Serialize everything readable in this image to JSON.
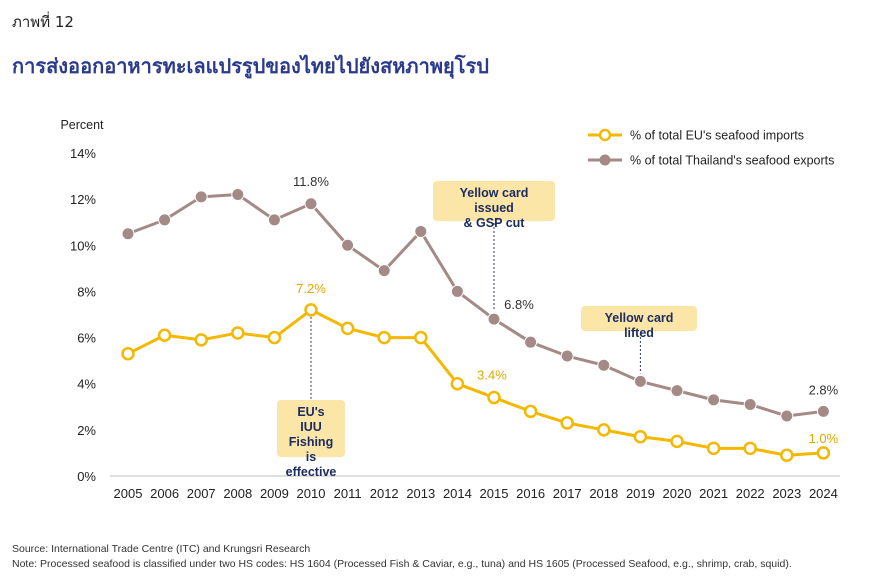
{
  "figure_label": "ภาพที่ 12",
  "title": "การส่งออกอาหารทะเลแปรรูปของไทยไปยังสหภาพยุโรป",
  "source": "Source: International Trade Centre (ITC) and Krungsri Research",
  "note": "Note: Processed seafood is classified under two HS codes: HS 1604 (Processed Fish & Caviar, e.g., tuna) and HS 1605 (Processed Seafood, e.g., shrimp, crab, squid).",
  "chart_data": {
    "type": "line",
    "ylabel": "Percent",
    "ylim": [
      0,
      14
    ],
    "yticks": [
      0,
      2,
      4,
      6,
      8,
      10,
      12,
      14
    ],
    "ytick_suffix": "%",
    "grid": false,
    "legend_position": "top-right",
    "categories": [
      "2005",
      "2006",
      "2007",
      "2008",
      "2009",
      "2010",
      "2011",
      "2012",
      "2013",
      "2014",
      "2015",
      "2016",
      "2017",
      "2018",
      "2019",
      "2020",
      "2021",
      "2022",
      "2023",
      "2024"
    ],
    "series": [
      {
        "name": "% of total EU's seafood imports",
        "color": "#f5b800",
        "values": [
          5.3,
          6.1,
          5.9,
          6.2,
          6.0,
          7.2,
          6.4,
          6.0,
          6.0,
          4.0,
          3.4,
          2.8,
          2.3,
          2.0,
          1.7,
          1.5,
          1.2,
          1.2,
          0.9,
          1.0
        ],
        "point_labels": [
          {
            "index": 5,
            "text": "7.2%"
          },
          {
            "index": 10,
            "text": "3.4%"
          },
          {
            "index": 19,
            "text": "1.0%"
          }
        ]
      },
      {
        "name": "% of total Thailand's seafood exports",
        "color": "#a48a87",
        "values": [
          10.5,
          11.1,
          12.1,
          12.2,
          11.1,
          11.8,
          10.0,
          8.9,
          10.6,
          8.0,
          6.8,
          5.8,
          5.2,
          4.8,
          4.1,
          3.7,
          3.3,
          3.1,
          2.6,
          2.8
        ],
        "point_labels": [
          {
            "index": 5,
            "text": "11.8%"
          },
          {
            "index": 10,
            "text": "6.8%"
          },
          {
            "index": 19,
            "text": "2.8%"
          }
        ]
      }
    ],
    "annotations": [
      {
        "text_lines": [
          "EU's IUU",
          "Fishing is",
          "effective"
        ],
        "category": "2010"
      },
      {
        "text_lines": [
          "Yellow card issued",
          "& GSP cut"
        ],
        "category": "2015"
      },
      {
        "text_lines": [
          "Yellow card lifted"
        ],
        "category": "2019"
      }
    ]
  }
}
